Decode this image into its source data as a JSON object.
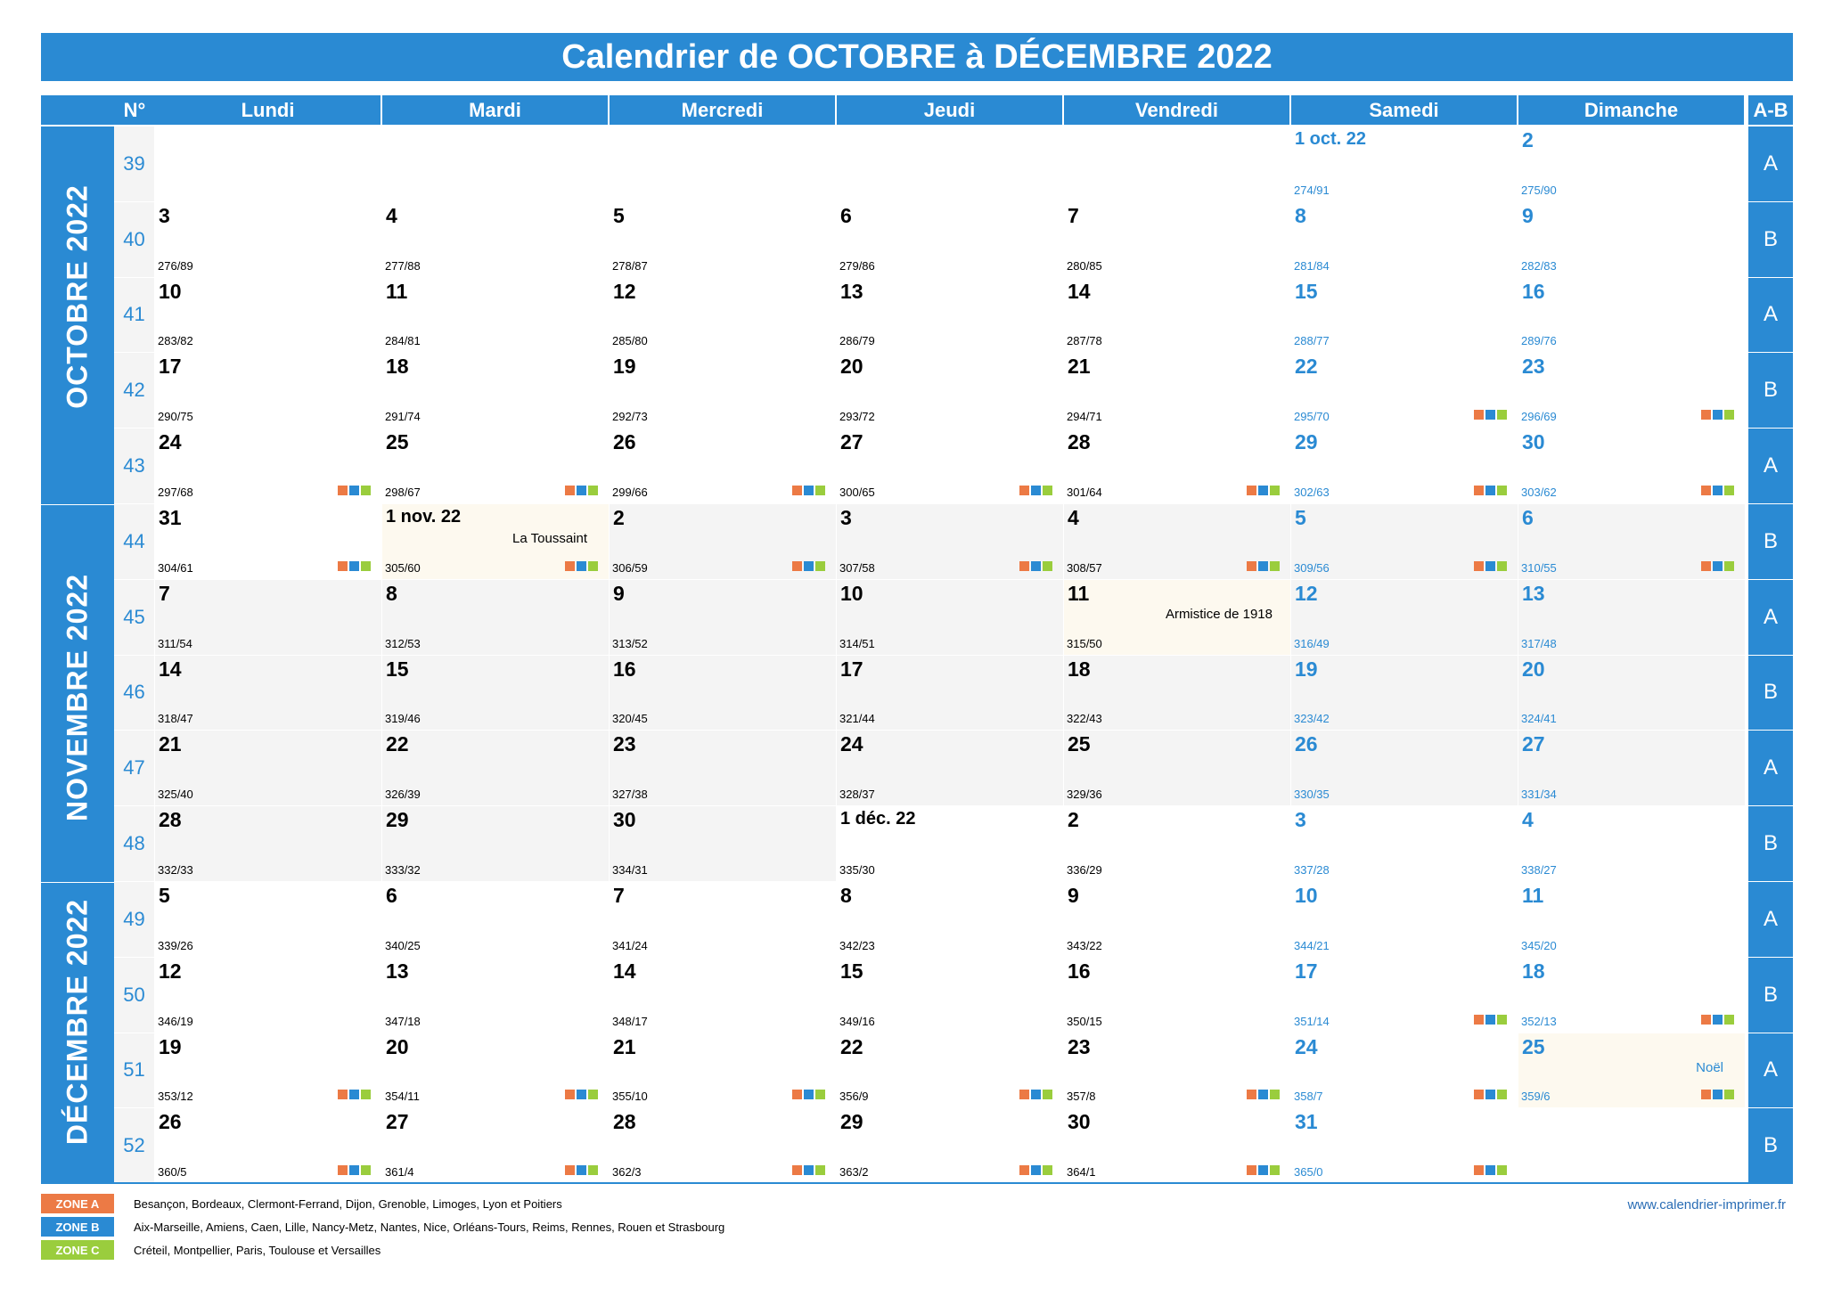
{
  "title": "Calendrier de OCTOBRE à DÉCEMBRE 2022",
  "headers": {
    "week_no": "N°",
    "days": [
      "Lundi",
      "Mardi",
      "Mercredi",
      "Jeudi",
      "Vendredi",
      "Samedi",
      "Dimanche"
    ],
    "ab": "A-B"
  },
  "months": [
    {
      "label": "OCTOBRE 2022",
      "start_week": 0,
      "end_week": 5
    },
    {
      "label": "NOVEMBRE 2022",
      "start_week": 5,
      "end_week": 10
    },
    {
      "label": "DÉCEMBRE 2022",
      "start_week": 10,
      "end_week": 14
    }
  ],
  "weeks": [
    {
      "no": "39",
      "ab": "A",
      "days": [
        null,
        null,
        null,
        null,
        null,
        {
          "d": "1 oct. 22",
          "y": "274/91"
        },
        {
          "d": "2",
          "y": "275/90"
        }
      ]
    },
    {
      "no": "40",
      "ab": "B",
      "days": [
        {
          "d": "3",
          "y": "276/89"
        },
        {
          "d": "4",
          "y": "277/88"
        },
        {
          "d": "5",
          "y": "278/87"
        },
        {
          "d": "6",
          "y": "279/86"
        },
        {
          "d": "7",
          "y": "280/85"
        },
        {
          "d": "8",
          "y": "281/84"
        },
        {
          "d": "9",
          "y": "282/83"
        }
      ]
    },
    {
      "no": "41",
      "ab": "A",
      "days": [
        {
          "d": "10",
          "y": "283/82"
        },
        {
          "d": "11",
          "y": "284/81"
        },
        {
          "d": "12",
          "y": "285/80"
        },
        {
          "d": "13",
          "y": "286/79"
        },
        {
          "d": "14",
          "y": "287/78"
        },
        {
          "d": "15",
          "y": "288/77"
        },
        {
          "d": "16",
          "y": "289/76"
        }
      ]
    },
    {
      "no": "42",
      "ab": "B",
      "days": [
        {
          "d": "17",
          "y": "290/75"
        },
        {
          "d": "18",
          "y": "291/74"
        },
        {
          "d": "19",
          "y": "292/73"
        },
        {
          "d": "20",
          "y": "293/72"
        },
        {
          "d": "21",
          "y": "294/71"
        },
        {
          "d": "22",
          "y": "295/70",
          "z": true
        },
        {
          "d": "23",
          "y": "296/69",
          "z": true
        }
      ]
    },
    {
      "no": "43",
      "ab": "A",
      "days": [
        {
          "d": "24",
          "y": "297/68",
          "z": true
        },
        {
          "d": "25",
          "y": "298/67",
          "z": true
        },
        {
          "d": "26",
          "y": "299/66",
          "z": true
        },
        {
          "d": "27",
          "y": "300/65",
          "z": true
        },
        {
          "d": "28",
          "y": "301/64",
          "z": true
        },
        {
          "d": "29",
          "y": "302/63",
          "z": true
        },
        {
          "d": "30",
          "y": "303/62",
          "z": true
        }
      ]
    },
    {
      "no": "44",
      "ab": "B",
      "days": [
        {
          "d": "31",
          "y": "304/61",
          "z": true
        },
        {
          "d": "1 nov. 22",
          "y": "305/60",
          "z": true,
          "h": "La Toussaint",
          "nov": true
        },
        {
          "d": "2",
          "y": "306/59",
          "z": true,
          "nov": true
        },
        {
          "d": "3",
          "y": "307/58",
          "z": true,
          "nov": true
        },
        {
          "d": "4",
          "y": "308/57",
          "z": true,
          "nov": true
        },
        {
          "d": "5",
          "y": "309/56",
          "z": true,
          "nov": true
        },
        {
          "d": "6",
          "y": "310/55",
          "z": true,
          "nov": true
        }
      ]
    },
    {
      "no": "45",
      "ab": "A",
      "days": [
        {
          "d": "7",
          "y": "311/54",
          "nov": true
        },
        {
          "d": "8",
          "y": "312/53",
          "nov": true
        },
        {
          "d": "9",
          "y": "313/52",
          "nov": true
        },
        {
          "d": "10",
          "y": "314/51",
          "nov": true
        },
        {
          "d": "11",
          "y": "315/50",
          "nov": true,
          "h": "Armistice de 1918"
        },
        {
          "d": "12",
          "y": "316/49",
          "nov": true
        },
        {
          "d": "13",
          "y": "317/48",
          "nov": true
        }
      ]
    },
    {
      "no": "46",
      "ab": "B",
      "days": [
        {
          "d": "14",
          "y": "318/47",
          "nov": true
        },
        {
          "d": "15",
          "y": "319/46",
          "nov": true
        },
        {
          "d": "16",
          "y": "320/45",
          "nov": true
        },
        {
          "d": "17",
          "y": "321/44",
          "nov": true
        },
        {
          "d": "18",
          "y": "322/43",
          "nov": true
        },
        {
          "d": "19",
          "y": "323/42",
          "nov": true
        },
        {
          "d": "20",
          "y": "324/41",
          "nov": true
        }
      ]
    },
    {
      "no": "47",
      "ab": "A",
      "days": [
        {
          "d": "21",
          "y": "325/40",
          "nov": true
        },
        {
          "d": "22",
          "y": "326/39",
          "nov": true
        },
        {
          "d": "23",
          "y": "327/38",
          "nov": true
        },
        {
          "d": "24",
          "y": "328/37",
          "nov": true
        },
        {
          "d": "25",
          "y": "329/36",
          "nov": true
        },
        {
          "d": "26",
          "y": "330/35",
          "nov": true
        },
        {
          "d": "27",
          "y": "331/34",
          "nov": true
        }
      ]
    },
    {
      "no": "48",
      "ab": "B",
      "days": [
        {
          "d": "28",
          "y": "332/33",
          "nov": true
        },
        {
          "d": "29",
          "y": "333/32",
          "nov": true
        },
        {
          "d": "30",
          "y": "334/31",
          "nov": true
        },
        {
          "d": "1 déc. 22",
          "y": "335/30"
        },
        {
          "d": "2",
          "y": "336/29"
        },
        {
          "d": "3",
          "y": "337/28"
        },
        {
          "d": "4",
          "y": "338/27"
        }
      ]
    },
    {
      "no": "49",
      "ab": "A",
      "days": [
        {
          "d": "5",
          "y": "339/26"
        },
        {
          "d": "6",
          "y": "340/25"
        },
        {
          "d": "7",
          "y": "341/24"
        },
        {
          "d": "8",
          "y": "342/23"
        },
        {
          "d": "9",
          "y": "343/22"
        },
        {
          "d": "10",
          "y": "344/21"
        },
        {
          "d": "11",
          "y": "345/20"
        }
      ]
    },
    {
      "no": "50",
      "ab": "B",
      "days": [
        {
          "d": "12",
          "y": "346/19"
        },
        {
          "d": "13",
          "y": "347/18"
        },
        {
          "d": "14",
          "y": "348/17"
        },
        {
          "d": "15",
          "y": "349/16"
        },
        {
          "d": "16",
          "y": "350/15"
        },
        {
          "d": "17",
          "y": "351/14",
          "z": true
        },
        {
          "d": "18",
          "y": "352/13",
          "z": true
        }
      ]
    },
    {
      "no": "51",
      "ab": "A",
      "days": [
        {
          "d": "19",
          "y": "353/12",
          "z": true
        },
        {
          "d": "20",
          "y": "354/11",
          "z": true
        },
        {
          "d": "21",
          "y": "355/10",
          "z": true
        },
        {
          "d": "22",
          "y": "356/9",
          "z": true
        },
        {
          "d": "23",
          "y": "357/8",
          "z": true
        },
        {
          "d": "24",
          "y": "358/7",
          "z": true
        },
        {
          "d": "25",
          "y": "359/6",
          "z": true,
          "h": "Noël"
        }
      ]
    },
    {
      "no": "52",
      "ab": "B",
      "days": [
        {
          "d": "26",
          "y": "360/5",
          "z": true
        },
        {
          "d": "27",
          "y": "361/4",
          "z": true
        },
        {
          "d": "28",
          "y": "362/3",
          "z": true
        },
        {
          "d": "29",
          "y": "363/2",
          "z": true
        },
        {
          "d": "30",
          "y": "364/1",
          "z": true
        },
        {
          "d": "31",
          "y": "365/0",
          "z": true
        },
        null
      ]
    }
  ],
  "zones": [
    {
      "badge": "ZONE A",
      "color": "#ec7a45",
      "cities": "Besançon, Bordeaux, Clermont-Ferrand, Dijon, Grenoble, Limoges, Lyon et Poitiers"
    },
    {
      "badge": "ZONE B",
      "color": "#2a8ad3",
      "cities": "Aix-Marseille, Amiens, Caen, Lille, Nancy-Metz, Nantes, Nice, Orléans-Tours, Reims, Rennes, Rouen et Strasbourg"
    },
    {
      "badge": "ZONE C",
      "color": "#9acd3d",
      "cities": "Créteil, Montpellier, Paris, Toulouse et Versailles"
    }
  ],
  "colors": {
    "accent": "#2a8ad3",
    "zone_a": "#ec7a45",
    "zone_b": "#2a8ad3",
    "zone_c": "#9acd3d"
  },
  "website": "www.calendrier-imprimer.fr"
}
